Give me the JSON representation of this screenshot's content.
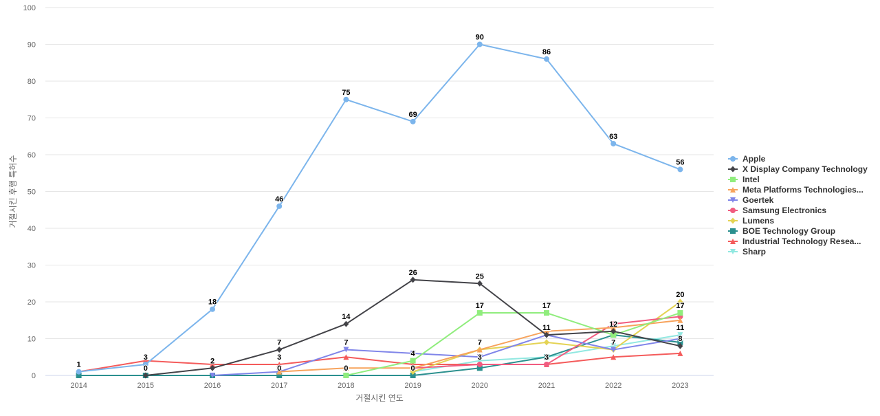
{
  "chart_data": {
    "type": "line",
    "title": "",
    "xlabel": "거절시킨 연도",
    "ylabel": "거절시킨 후행 특허수",
    "ylim": [
      0,
      100
    ],
    "yticks": [
      0,
      10,
      20,
      30,
      40,
      50,
      60,
      70,
      80,
      90,
      100
    ],
    "categories": [
      "2014",
      "2015",
      "2016",
      "2017",
      "2018",
      "2019",
      "2020",
      "2021",
      "2022",
      "2023"
    ],
    "grid": true,
    "legend_position": "right",
    "series": [
      {
        "name": "Apple",
        "color": "#7cb5ec",
        "marker": "circle",
        "values": [
          1,
          3,
          18,
          46,
          75,
          69,
          90,
          86,
          63,
          56
        ],
        "labels": true
      },
      {
        "name": "X Display Company Technology",
        "color": "#434348",
        "marker": "diamond",
        "values": [
          null,
          0,
          2,
          7,
          14,
          26,
          25,
          11,
          12,
          8
        ],
        "labels": true
      },
      {
        "name": "Intel",
        "color": "#90ed7d",
        "marker": "square",
        "values": [
          null,
          null,
          null,
          null,
          0,
          4,
          17,
          17,
          11,
          17
        ],
        "labels": true
      },
      {
        "name": "Meta Platforms Technologies...",
        "color": "#f7a35c",
        "marker": "triangle",
        "values": [
          null,
          null,
          null,
          1,
          2,
          2,
          7,
          12,
          13,
          15
        ],
        "labels": false
      },
      {
        "name": "Goertek",
        "color": "#8085e9",
        "marker": "triangle-down",
        "values": [
          null,
          null,
          0,
          1,
          7,
          6,
          5,
          11,
          7,
          10
        ],
        "labels": false
      },
      {
        "name": "Samsung Electronics",
        "color": "#f15c80",
        "marker": "circle",
        "values": [
          null,
          null,
          null,
          null,
          null,
          2,
          3,
          3,
          14,
          16
        ],
        "labels": false
      },
      {
        "name": "Lumens",
        "color": "#e4d354",
        "marker": "diamond",
        "values": [
          null,
          null,
          null,
          null,
          null,
          1,
          7,
          9,
          7,
          20
        ],
        "labels": false
      },
      {
        "name": "BOE Technology Group",
        "color": "#2b908f",
        "marker": "square",
        "values": [
          0,
          0,
          0,
          0,
          0,
          0,
          2,
          5,
          11,
          9
        ],
        "labels": false
      },
      {
        "name": "Industrial Technology Resea...",
        "color": "#f45b5b",
        "marker": "triangle",
        "values": [
          1,
          4,
          3,
          3,
          5,
          3,
          3,
          3,
          5,
          6
        ],
        "labels": false
      },
      {
        "name": "Sharp",
        "color": "#91e8e1",
        "marker": "triangle-down",
        "values": [
          null,
          null,
          null,
          null,
          null,
          1,
          4,
          5,
          8,
          11
        ],
        "labels": false
      }
    ],
    "annotations": [
      {
        "category": "2014",
        "value": 1,
        "text": "1"
      },
      {
        "category": "2015",
        "value": 3,
        "text": "3"
      },
      {
        "category": "2015",
        "value": 0,
        "text": "0"
      },
      {
        "category": "2016",
        "value": 18,
        "text": "18"
      },
      {
        "category": "2016",
        "value": 2,
        "text": "2"
      },
      {
        "category": "2017",
        "value": 46,
        "text": "46"
      },
      {
        "category": "2017",
        "value": 7,
        "text": "7"
      },
      {
        "category": "2017",
        "value": 3,
        "text": "3"
      },
      {
        "category": "2017",
        "value": 0,
        "text": "0"
      },
      {
        "category": "2018",
        "value": 75,
        "text": "75"
      },
      {
        "category": "2018",
        "value": 14,
        "text": "14"
      },
      {
        "category": "2018",
        "value": 7,
        "text": "7"
      },
      {
        "category": "2018",
        "value": 0,
        "text": "0"
      },
      {
        "category": "2019",
        "value": 69,
        "text": "69"
      },
      {
        "category": "2019",
        "value": 26,
        "text": "26"
      },
      {
        "category": "2019",
        "value": 4,
        "text": "4"
      },
      {
        "category": "2019",
        "value": 0,
        "text": "0"
      },
      {
        "category": "2020",
        "value": 90,
        "text": "90"
      },
      {
        "category": "2020",
        "value": 25,
        "text": "25"
      },
      {
        "category": "2020",
        "value": 17,
        "text": "17"
      },
      {
        "category": "2020",
        "value": 7,
        "text": "7"
      },
      {
        "category": "2020",
        "value": 3,
        "text": "3"
      },
      {
        "category": "2021",
        "value": 86,
        "text": "86"
      },
      {
        "category": "2021",
        "value": 17,
        "text": "17"
      },
      {
        "category": "2021",
        "value": 11,
        "text": "11"
      },
      {
        "category": "2021",
        "value": 3,
        "text": "3"
      },
      {
        "category": "2022",
        "value": 63,
        "text": "63"
      },
      {
        "category": "2022",
        "value": 12,
        "text": "12"
      },
      {
        "category": "2022",
        "value": 7,
        "text": "7"
      },
      {
        "category": "2023",
        "value": 56,
        "text": "56"
      },
      {
        "category": "2023",
        "value": 20,
        "text": "20"
      },
      {
        "category": "2023",
        "value": 17,
        "text": "17"
      },
      {
        "category": "2023",
        "value": 11,
        "text": "11"
      },
      {
        "category": "2023",
        "value": 8,
        "text": "8"
      }
    ]
  }
}
